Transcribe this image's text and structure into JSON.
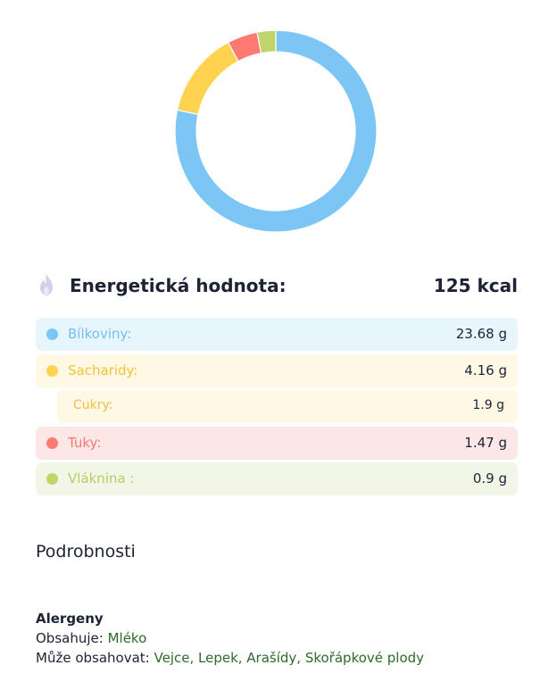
{
  "chart_data": {
    "type": "pie",
    "slices": [
      {
        "label": "Bílkoviny",
        "value": 23.68,
        "color": "#7cc6f5"
      },
      {
        "label": "Sacharidy",
        "value": 4.16,
        "color": "#ffd34f"
      },
      {
        "label": "Tuky",
        "value": 1.47,
        "color": "#ff7a72"
      },
      {
        "label": "Vláknina",
        "value": 0.9,
        "color": "#c1d46c"
      }
    ],
    "donut": true
  },
  "energy": {
    "icon": "flame-icon",
    "label": "Energetická hodnota:",
    "value": "125 kcal"
  },
  "nutrients": [
    {
      "label": "Bílkoviny:",
      "value": "23.68 g",
      "color": "#7cc6f5",
      "bg": "#e7f5fd",
      "label_color": "#73c1f0"
    },
    {
      "label": "Sacharidy:",
      "value": "4.16 g",
      "color": "#ffd34f",
      "bg": "#fef8e4",
      "label_color": "#f4c338"
    },
    {
      "label": "Cukry:",
      "value": "1.9 g",
      "bg": "#fef8e4",
      "label_color": "#f2bf45",
      "sub": true
    },
    {
      "label": "Tuky:",
      "value": "1.47 g",
      "color": "#ff7a72",
      "bg": "#fde6e6",
      "label_color": "#f47b73"
    },
    {
      "label": "Vláknina :",
      "value": "0.9 g",
      "color": "#c1d46c",
      "bg": "#f2f6e7",
      "label_color": "#b8cb66"
    }
  ],
  "details_title": "Podrobnosti",
  "allergens": {
    "title": "Alergeny",
    "contains_label": "Obsahuje:",
    "contains_value": "Mléko",
    "may_contain_label": "Může obsahovat:",
    "may_contain_value": "Vejce, Lepek, Arašídy, Skořápkové plody"
  }
}
